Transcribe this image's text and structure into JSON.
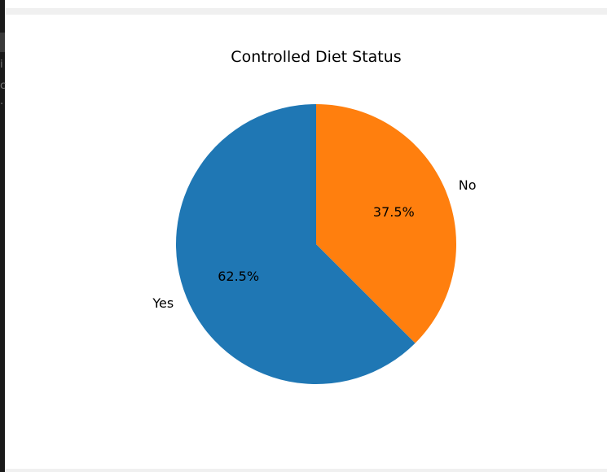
{
  "chart_data": {
    "type": "pie",
    "title": "Controlled Diet Status",
    "labels": [
      "Yes",
      "No"
    ],
    "values": [
      62.5,
      37.5
    ],
    "autopct_labels": [
      "62.5%",
      "37.5%"
    ],
    "colors": [
      "#1f77b4",
      "#ff7f0e"
    ],
    "start_angle_deg": 90,
    "direction": "counterclockwise"
  },
  "clipped_edge_text": [
    "i",
    "c",
    "·"
  ]
}
